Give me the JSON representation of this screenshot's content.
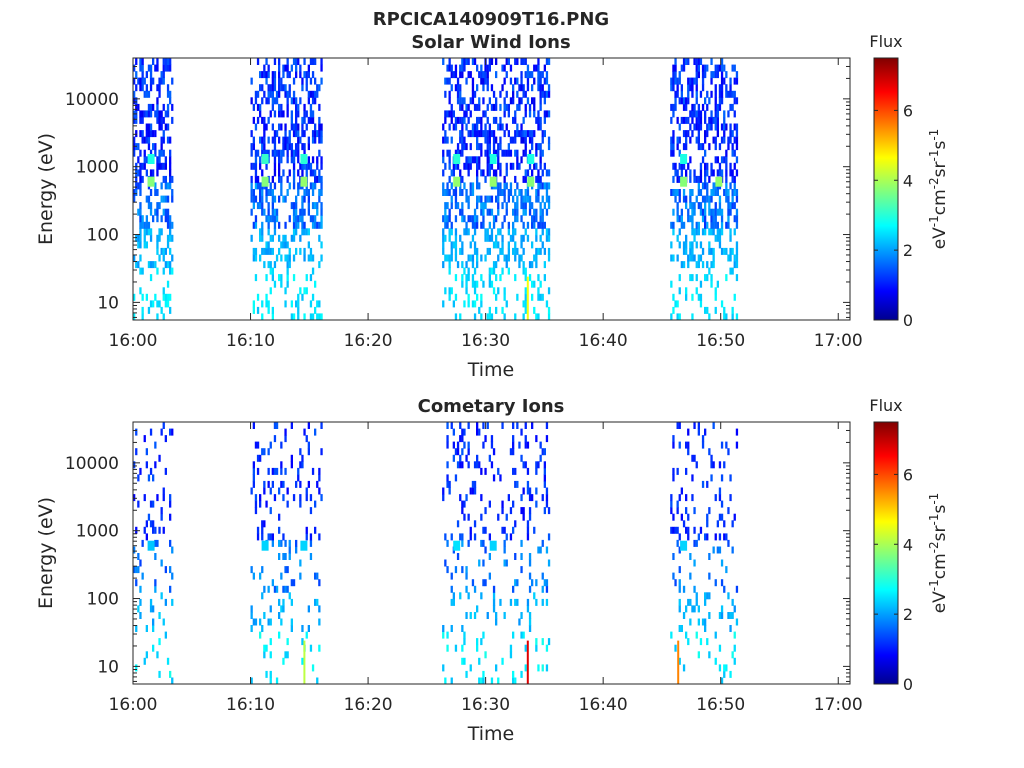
{
  "figure": {
    "title": "RPCICA140909T16.PNG"
  },
  "colorbar": {
    "label": "Flux",
    "unit_main": "eV",
    "unit_parts": [
      {
        "t": "eV",
        "sup": false
      },
      {
        "t": "-1",
        "sup": true
      },
      {
        "t": "cm",
        "sup": false
      },
      {
        "t": "-2",
        "sup": true
      },
      {
        "t": "sr",
        "sup": false
      },
      {
        "t": "-1",
        "sup": true
      },
      {
        "t": "s",
        "sup": false
      },
      {
        "t": "-1",
        "sup": true
      }
    ],
    "ticks": [
      "0",
      "2",
      "4",
      "6"
    ],
    "range": [
      0,
      7.5
    ],
    "colormap": "jet"
  },
  "chart_data": [
    {
      "type": "heatmap",
      "title": "Solar Wind Ions",
      "xlabel": "Time",
      "ylabel": "Energy (eV)",
      "yscale": "log",
      "ylim": [
        5.5,
        40000
      ],
      "xlim_minutes": [
        0,
        61
      ],
      "xticks": [
        "16:00",
        "16:10",
        "16:20",
        "16:30",
        "16:40",
        "16:50",
        "17:00"
      ],
      "yticks": [
        "10",
        "100",
        "1000",
        "10000"
      ],
      "bursts": [
        {
          "start": "16:00",
          "end": "16:03.3"
        },
        {
          "start": "16:10",
          "end": "16:16"
        },
        {
          "start": "16:26.3",
          "end": "16:35.3"
        },
        {
          "start": "16:45.7",
          "end": "16:51.3"
        }
      ],
      "hotspots": [
        {
          "time": "16:01.5",
          "energy_eV": 600,
          "flux": 3.8
        },
        {
          "time": "16:01.5",
          "energy_eV": 1300,
          "flux": 3.0
        },
        {
          "time": "16:11.2",
          "energy_eV": 600,
          "flux": 3.8
        },
        {
          "time": "16:11.2",
          "energy_eV": 1300,
          "flux": 3.2
        },
        {
          "time": "16:14.5",
          "energy_eV": 600,
          "flux": 3.9
        },
        {
          "time": "16:14.5",
          "energy_eV": 1300,
          "flux": 3.1
        },
        {
          "time": "16:27.5",
          "energy_eV": 600,
          "flux": 3.9
        },
        {
          "time": "16:27.5",
          "energy_eV": 1300,
          "flux": 3.1
        },
        {
          "time": "16:30.6",
          "energy_eV": 600,
          "flux": 3.9
        },
        {
          "time": "16:30.6",
          "energy_eV": 1300,
          "flux": 3.0
        },
        {
          "time": "16:33.8",
          "energy_eV": 600,
          "flux": 3.8
        },
        {
          "time": "16:33.8",
          "energy_eV": 1300,
          "flux": 3.0
        },
        {
          "time": "16:46.8",
          "energy_eV": 600,
          "flux": 3.8
        },
        {
          "time": "16:46.8",
          "energy_eV": 1300,
          "flux": 3.0
        },
        {
          "time": "16:49.8",
          "energy_eV": 600,
          "flux": 3.9
        }
      ],
      "low_energy_peaks": [
        {
          "time": "16:33.5",
          "energy_eV": 10,
          "flux": 4.6
        }
      ]
    },
    {
      "type": "heatmap",
      "title": "Cometary Ions",
      "xlabel": "Time",
      "ylabel": "Energy (eV)",
      "yscale": "log",
      "ylim": [
        5.5,
        40000
      ],
      "xlim_minutes": [
        0,
        61
      ],
      "xticks": [
        "16:00",
        "16:10",
        "16:20",
        "16:30",
        "16:40",
        "16:50",
        "17:00"
      ],
      "yticks": [
        "10",
        "100",
        "1000",
        "10000"
      ],
      "bursts": [
        {
          "start": "16:00",
          "end": "16:03.3"
        },
        {
          "start": "16:10",
          "end": "16:16"
        },
        {
          "start": "16:26.3",
          "end": "16:35.3"
        },
        {
          "start": "16:45.7",
          "end": "16:51.3"
        }
      ],
      "hotspots": [
        {
          "time": "16:01.5",
          "energy_eV": 600,
          "flux": 2.4
        },
        {
          "time": "16:11.2",
          "energy_eV": 600,
          "flux": 2.5
        },
        {
          "time": "16:14.5",
          "energy_eV": 600,
          "flux": 2.5
        },
        {
          "time": "16:27.5",
          "energy_eV": 600,
          "flux": 2.6
        },
        {
          "time": "16:30.6",
          "energy_eV": 600,
          "flux": 2.5
        },
        {
          "time": "16:46.8",
          "energy_eV": 600,
          "flux": 2.5
        }
      ],
      "low_energy_peaks": [
        {
          "time": "16:33.5",
          "energy_eV": 10,
          "flux": 6.8
        },
        {
          "time": "16:46.3",
          "energy_eV": 10,
          "flux": 5.6
        },
        {
          "time": "16:14.5",
          "energy_eV": 10,
          "flux": 4.2
        }
      ]
    }
  ]
}
